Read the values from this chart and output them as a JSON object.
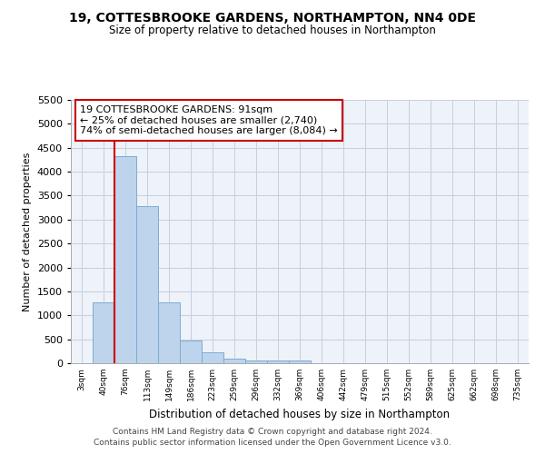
{
  "title": "19, COTTESBROOKE GARDENS, NORTHAMPTON, NN4 0DE",
  "subtitle": "Size of property relative to detached houses in Northampton",
  "xlabel": "Distribution of detached houses by size in Northampton",
  "ylabel": "Number of detached properties",
  "categories": [
    "3sqm",
    "40sqm",
    "76sqm",
    "113sqm",
    "149sqm",
    "186sqm",
    "223sqm",
    "259sqm",
    "296sqm",
    "332sqm",
    "369sqm",
    "406sqm",
    "442sqm",
    "479sqm",
    "515sqm",
    "552sqm",
    "589sqm",
    "625sqm",
    "662sqm",
    "698sqm",
    "735sqm"
  ],
  "values": [
    0,
    1270,
    4330,
    3290,
    1280,
    480,
    220,
    90,
    60,
    50,
    50,
    0,
    0,
    0,
    0,
    0,
    0,
    0,
    0,
    0,
    0
  ],
  "bar_color": "#bed3ec",
  "bar_edge_color": "#7aadd4",
  "property_line_bin": 2,
  "property_sqm": 91,
  "property_name": "19 COTTESBROOKE GARDENS",
  "pct_smaller": 25,
  "n_smaller": 2740,
  "pct_semi_larger": 74,
  "n_semi_larger": 8084,
  "annotation_line_color": "#cc0000",
  "annotation_box_color": "#cc0000",
  "ylim": [
    0,
    5500
  ],
  "yticks": [
    0,
    500,
    1000,
    1500,
    2000,
    2500,
    3000,
    3500,
    4000,
    4500,
    5000,
    5500
  ],
  "background_color": "#eef2f9",
  "grid_color": "#c5cfdf",
  "footer1": "Contains HM Land Registry data © Crown copyright and database right 2024.",
  "footer2": "Contains public sector information licensed under the Open Government Licence v3.0."
}
